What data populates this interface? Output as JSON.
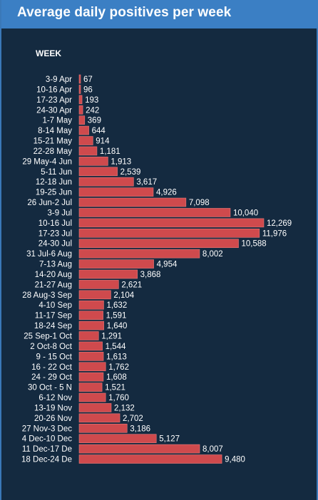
{
  "title": "Average daily positives per week",
  "axis_header": "WEEK",
  "colors": {
    "background": "#142a40",
    "title_bar": "#3b7fc4",
    "bar": "#cf4a4d",
    "bar_edge": "#e77a7a",
    "text": "#ffffff"
  },
  "chart_data": {
    "type": "bar",
    "orientation": "horizontal",
    "title": "Average daily positives per week",
    "ylabel": "WEEK",
    "xlabel": "",
    "grid": false,
    "legend": "none",
    "xlim": [
      0,
      12269
    ],
    "categories": [
      "3-9 Apr",
      "10-16 Apr",
      "17-23 Apr",
      "24-30 Apr",
      "1-7 May",
      "8-14 May",
      "15-21 May",
      "22-28 May",
      "29 May-4 Jun",
      "5-11 Jun",
      "12-18 Jun",
      "19-25 Jun",
      "26 Jun-2 Jul",
      "3-9 Jul",
      "10-16 Jul",
      "17-23 Jul",
      "24-30 Jul",
      "31 Jul-6 Aug",
      "7-13 Aug",
      "14-20 Aug",
      "21-27 Aug",
      "28 Aug-3 Sep",
      "4-10 Sep",
      "11-17 Sep",
      "18-24 Sep",
      "25 Sep-1 Oct",
      "2 Oct-8 Oct",
      "9 - 15 Oct",
      "16 - 22 Oct",
      "24 - 29 Oct",
      "30 Oct - 5 N",
      "6-12 Nov",
      "13-19 Nov",
      "20-26 Nov",
      "27 Nov-3 Dec",
      "4 Dec-10 Dec",
      "11 Dec-17 De",
      "18 Dec-24 De"
    ],
    "values": [
      67,
      96,
      193,
      242,
      369,
      644,
      914,
      1181,
      1913,
      2539,
      3617,
      4926,
      7098,
      10040,
      12269,
      11976,
      10588,
      8002,
      4954,
      3868,
      2621,
      2104,
      1632,
      1591,
      1640,
      1291,
      1544,
      1613,
      1762,
      1608,
      1521,
      1760,
      2132,
      2702,
      3186,
      5127,
      8007,
      9480
    ],
    "value_labels": [
      "67",
      "96",
      "193",
      "242",
      "369",
      "644",
      "914",
      "1,181",
      "1,913",
      "2,539",
      "3,617",
      "4,926",
      "7,098",
      "10,040",
      "12,269",
      "11,976",
      "10,588",
      "8,002",
      "4,954",
      "3,868",
      "2,621",
      "2,104",
      "1,632",
      "1,591",
      "1,640",
      "1,291",
      "1,544",
      "1,613",
      "1,762",
      "1,608",
      "1,521",
      "1,760",
      "2,132",
      "2,702",
      "3,186",
      "5,127",
      "8,007",
      "9,480"
    ]
  }
}
